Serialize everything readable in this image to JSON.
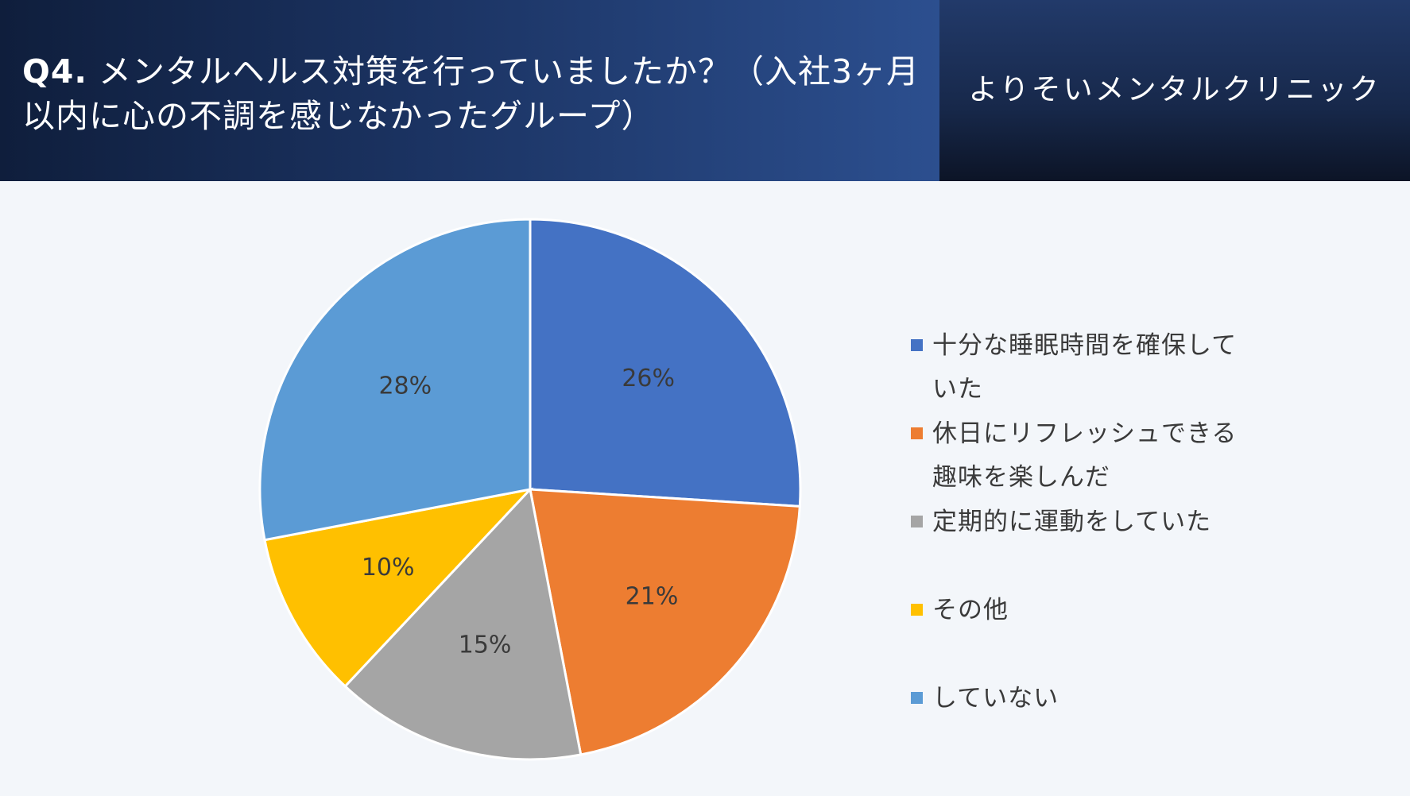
{
  "header": {
    "question_number": "Q4.",
    "question_text": "メンタルヘルス対策を行っていましたか？（入社3ヶ月以内に心の不調を感じなかったグループ）",
    "clinic_name": "よりそいメンタルクリニック"
  },
  "chart_data": {
    "type": "pie",
    "categories": [
      "十分な睡眠時間を確保していた",
      "休日にリフレッシュできる趣味を楽しんだ",
      "定期的に運動をしていた",
      "その他",
      "していない"
    ],
    "values": [
      26,
      21,
      15,
      10,
      28
    ],
    "value_labels": [
      "26%",
      "21%",
      "15%",
      "10%",
      "28%"
    ],
    "colors": [
      "#4472c4",
      "#ed7d31",
      "#a5a5a5",
      "#ffc000",
      "#5b9bd5"
    ],
    "legend_position": "right",
    "start_angle": "12 o'clock",
    "direction": "clockwise"
  }
}
